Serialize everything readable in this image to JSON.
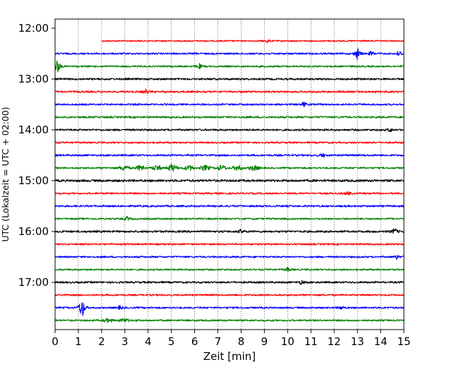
{
  "chart_data": {
    "type": "line",
    "title": "",
    "xlabel": "Zeit  [min]",
    "ylabel": "UTC (Lokalzeit = UTC + 02:00)",
    "xlim": [
      0,
      15
    ],
    "x_ticks": [
      "0",
      "1",
      "2",
      "3",
      "4",
      "5",
      "6",
      "7",
      "8",
      "9",
      "10",
      "11",
      "12",
      "13",
      "14",
      "15"
    ],
    "y_ticks": [
      {
        "label": "12:00",
        "row": 0
      },
      {
        "label": "13:00",
        "row": 4
      },
      {
        "label": "14:00",
        "row": 8
      },
      {
        "label": "15:00",
        "row": 12
      },
      {
        "label": "16:00",
        "row": 16
      },
      {
        "label": "17:00",
        "row": 20
      }
    ],
    "grid": "vertical dotted lines at each minute",
    "row_interval_minutes": 15,
    "palette": [
      "#0000ff",
      "#008000",
      "#000000",
      "#ff0000"
    ],
    "traces": [
      {
        "start": "12:15",
        "color": "#ff0000",
        "x_start": 2.0,
        "x_end": 15,
        "amplitude": 1.0,
        "events": [
          {
            "x": 9.1,
            "amp": 3
          }
        ]
      },
      {
        "start": "12:30",
        "color": "#0000ff",
        "x_start": 0,
        "x_end": 15,
        "amplitude": 1.2,
        "events": [
          {
            "x": 13.0,
            "amp": 9
          },
          {
            "x": 13.6,
            "amp": 4
          },
          {
            "x": 14.8,
            "amp": 5
          }
        ]
      },
      {
        "start": "12:45",
        "color": "#008000",
        "x_start": 0,
        "x_end": 15,
        "amplitude": 1.2,
        "events": [
          {
            "x": 0.1,
            "amp": 12
          },
          {
            "x": 6.2,
            "amp": 4
          }
        ]
      },
      {
        "start": "13:00",
        "color": "#000000",
        "x_start": 0,
        "x_end": 15,
        "amplitude": 1.3,
        "events": []
      },
      {
        "start": "13:15",
        "color": "#ff0000",
        "x_start": 0,
        "x_end": 15,
        "amplitude": 1.3,
        "events": [
          {
            "x": 3.9,
            "amp": 3
          }
        ]
      },
      {
        "start": "13:30",
        "color": "#0000ff",
        "x_start": 0,
        "x_end": 15,
        "amplitude": 1.2,
        "events": [
          {
            "x": 10.7,
            "amp": 4
          }
        ]
      },
      {
        "start": "13:45",
        "color": "#008000",
        "x_start": 0,
        "x_end": 15,
        "amplitude": 1.3,
        "events": []
      },
      {
        "start": "14:00",
        "color": "#000000",
        "x_start": 0,
        "x_end": 15,
        "amplitude": 1.3,
        "events": [
          {
            "x": 14.4,
            "amp": 3
          }
        ]
      },
      {
        "start": "14:15",
        "color": "#ff0000",
        "x_start": 0,
        "x_end": 15,
        "amplitude": 1.2,
        "events": []
      },
      {
        "start": "14:30",
        "color": "#0000ff",
        "x_start": 0,
        "x_end": 15,
        "amplitude": 1.3,
        "events": [
          {
            "x": 11.5,
            "amp": 3
          }
        ]
      },
      {
        "start": "14:45",
        "color": "#008000",
        "x_start": 0,
        "x_end": 15,
        "amplitude": 1.2,
        "events": [
          {
            "x": 5.0,
            "amp": 3
          }
        ],
        "noisy": {
          "from": 2.5,
          "to": 9.0,
          "amp": 3
        }
      },
      {
        "start": "15:00",
        "color": "#000000",
        "x_start": 0,
        "x_end": 15,
        "amplitude": 1.6,
        "events": []
      },
      {
        "start": "15:15",
        "color": "#ff0000",
        "x_start": 0,
        "x_end": 15,
        "amplitude": 1.2,
        "events": [
          {
            "x": 12.6,
            "amp": 3
          }
        ]
      },
      {
        "start": "15:30",
        "color": "#0000ff",
        "x_start": 0,
        "x_end": 15,
        "amplitude": 1.3,
        "events": []
      },
      {
        "start": "15:45",
        "color": "#008000",
        "x_start": 0,
        "x_end": 15,
        "amplitude": 1.2,
        "events": [
          {
            "x": 3.1,
            "amp": 3
          }
        ]
      },
      {
        "start": "16:00",
        "color": "#000000",
        "x_start": 0,
        "x_end": 15,
        "amplitude": 1.4,
        "events": [
          {
            "x": 8.0,
            "amp": 3
          },
          {
            "x": 14.6,
            "amp": 5
          }
        ]
      },
      {
        "start": "16:15",
        "color": "#ff0000",
        "x_start": 0,
        "x_end": 15,
        "amplitude": 1.2,
        "events": []
      },
      {
        "start": "16:30",
        "color": "#0000ff",
        "x_start": 0,
        "x_end": 15,
        "amplitude": 1.2,
        "events": [
          {
            "x": 14.7,
            "amp": 3
          }
        ]
      },
      {
        "start": "16:45",
        "color": "#008000",
        "x_start": 0,
        "x_end": 15,
        "amplitude": 1.2,
        "events": [
          {
            "x": 10.0,
            "amp": 3
          }
        ]
      },
      {
        "start": "17:00",
        "color": "#000000",
        "x_start": 0,
        "x_end": 15,
        "amplitude": 1.3,
        "events": [
          {
            "x": 10.6,
            "amp": 3
          }
        ]
      },
      {
        "start": "17:15",
        "color": "#ff0000",
        "x_start": 0,
        "x_end": 15,
        "amplitude": 1.2,
        "events": []
      },
      {
        "start": "17:30",
        "color": "#0000ff",
        "x_start": 0,
        "x_end": 15,
        "amplitude": 1.2,
        "events": [
          {
            "x": 1.15,
            "amp": 20
          },
          {
            "x": 2.8,
            "amp": 3
          },
          {
            "x": 12.3,
            "amp": 3
          }
        ]
      },
      {
        "start": "17:45",
        "color": "#008000",
        "x_start": 0,
        "x_end": 15,
        "amplitude": 1.2,
        "events": [],
        "noisy": {
          "from": 2.0,
          "to": 3.5,
          "amp": 2
        }
      }
    ]
  }
}
